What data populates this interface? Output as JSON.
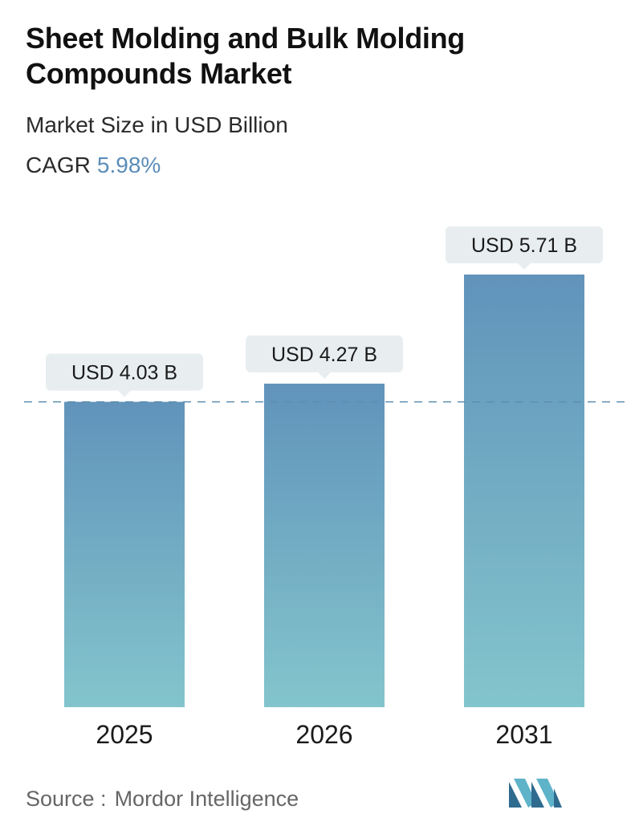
{
  "header": {
    "title": "Sheet Molding and Bulk Molding Compounds Market",
    "subtitle": "Market Size in USD Billion",
    "cagr_label": "CAGR",
    "cagr_value": "5.98%"
  },
  "footer": {
    "source_label": "Source :",
    "source_name": "Mordor Intelligence",
    "logo_icon": "mordor-intelligence-logo"
  },
  "colors": {
    "bar_top": "#6193bb",
    "bar_bottom": "#83c5cc",
    "label_bg": "#e8eef0",
    "reference_line": "#5e8fb0",
    "cagr_accent": "#5b8db8"
  },
  "chart_data": {
    "type": "bar",
    "categories": [
      "2025",
      "2026",
      "2031"
    ],
    "values": [
      4.03,
      4.27,
      5.71
    ],
    "value_labels": [
      "USD 4.03 B",
      "USD 4.27 B",
      "USD 5.71 B"
    ],
    "ylim": [
      0,
      5.71
    ],
    "grid": false,
    "reference_line": {
      "value": 4.03,
      "style": "dashed"
    }
  }
}
